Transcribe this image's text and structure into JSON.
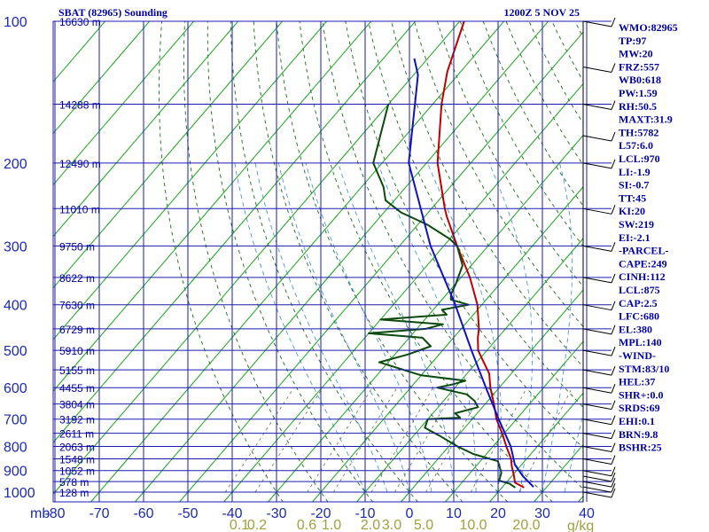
{
  "header": {
    "title": "SBAT (82965) Sounding",
    "time": "1200Z  5 NOV 25"
  },
  "chart_data": {
    "type": "skew-t",
    "title": "SBAT (82965) Sounding",
    "valid_time": "1200Z  5 NOV 25",
    "pressure_levels": [
      {
        "p": 100,
        "label": "100",
        "alt": "16630 m"
      },
      {
        "p": 150,
        "label": "",
        "alt": "14288 m"
      },
      {
        "p": 200,
        "label": "200",
        "alt": "12490 m"
      },
      {
        "p": 250,
        "label": "",
        "alt": "11010 m"
      },
      {
        "p": 300,
        "label": "300",
        "alt": "9750 m"
      },
      {
        "p": 350,
        "label": "",
        "alt": "8622 m"
      },
      {
        "p": 400,
        "label": "400",
        "alt": "7630 m"
      },
      {
        "p": 450,
        "label": "",
        "alt": "6729 m"
      },
      {
        "p": 500,
        "label": "500",
        "alt": "5910 m"
      },
      {
        "p": 550,
        "label": "",
        "alt": "5155 m"
      },
      {
        "p": 600,
        "label": "600",
        "alt": "4455 m"
      },
      {
        "p": 650,
        "label": "",
        "alt": "3804 m"
      },
      {
        "p": 700,
        "label": "700",
        "alt": "3192 m"
      },
      {
        "p": 750,
        "label": "",
        "alt": "2611 m"
      },
      {
        "p": 800,
        "label": "800",
        "alt": "2063 m"
      },
      {
        "p": 850,
        "label": "",
        "alt": "1548 m"
      },
      {
        "p": 900,
        "label": "900",
        "alt": "1052 m"
      },
      {
        "p": 950,
        "label": "",
        "alt": "578 m"
      },
      {
        "p": 1000,
        "label": "1000",
        "alt": "128 m"
      }
    ],
    "pressure_unit_label": "mb",
    "temp_ticks": [
      -80,
      -70,
      -60,
      -50,
      -40,
      -30,
      -20,
      -10,
      0,
      10,
      20,
      30,
      40
    ],
    "temp_tick_labels": [
      "-80",
      "-70",
      "-60",
      "-50",
      "-40",
      "-30",
      "-20",
      "-10",
      "0",
      "10",
      "20",
      "30",
      "40"
    ],
    "mixing_ratio_labels": [
      {
        "w": 0.1,
        "label": "0.1"
      },
      {
        "w": 0.2,
        "label": "0.2"
      },
      {
        "w": 0.6,
        "label": "0.6"
      },
      {
        "w": 1.0,
        "label": "1.0"
      },
      {
        "w": 2.0,
        "label": "2.0"
      },
      {
        "w": 3.0,
        "label": "3.0"
      },
      {
        "w": 5.0,
        "label": "5.0"
      },
      {
        "w": 10.0,
        "label": "10.0"
      },
      {
        "w": 20.0,
        "label": "20.0"
      }
    ],
    "mixing_ratio_unit": "g/kg",
    "series": [
      {
        "name": "temperature",
        "color": "#c00000",
        "points": [
          {
            "p": 978,
            "t": 25.0
          },
          {
            "p": 955,
            "t": 22.0
          },
          {
            "p": 925,
            "t": 20.5
          },
          {
            "p": 880,
            "t": 18.0
          },
          {
            "p": 850,
            "t": 16.5
          },
          {
            "p": 800,
            "t": 13.0
          },
          {
            "p": 750,
            "t": 9.5
          },
          {
            "p": 700,
            "t": 5.5
          },
          {
            "p": 650,
            "t": 2.0
          },
          {
            "p": 600,
            "t": -2.0
          },
          {
            "p": 560,
            "t": -5.0
          },
          {
            "p": 525,
            "t": -9.0
          },
          {
            "p": 500,
            "t": -12.0
          },
          {
            "p": 470,
            "t": -14.5
          },
          {
            "p": 450,
            "t": -16.0
          },
          {
            "p": 400,
            "t": -21.0
          },
          {
            "p": 350,
            "t": -28.0
          },
          {
            "p": 300,
            "t": -37.0
          },
          {
            "p": 260,
            "t": -45.0
          },
          {
            "p": 250,
            "t": -47.0
          },
          {
            "p": 200,
            "t": -57.5
          },
          {
            "p": 150,
            "t": -68.0
          },
          {
            "p": 128,
            "t": -73.0
          },
          {
            "p": 100,
            "t": -79.0
          }
        ]
      },
      {
        "name": "dewpoint",
        "color": "#0a4a0a",
        "points": [
          {
            "p": 978,
            "t": 23.0
          },
          {
            "p": 960,
            "t": 21.0
          },
          {
            "p": 945,
            "t": 18.0
          },
          {
            "p": 910,
            "t": 17.0
          },
          {
            "p": 860,
            "t": 14.0
          },
          {
            "p": 830,
            "t": 7.0
          },
          {
            "p": 800,
            "t": 2.0
          },
          {
            "p": 760,
            "t": -4.0
          },
          {
            "p": 730,
            "t": -9.0
          },
          {
            "p": 700,
            "t": -10.0
          },
          {
            "p": 695,
            "t": -3.0
          },
          {
            "p": 680,
            "t": -5.0
          },
          {
            "p": 660,
            "t": -1.0
          },
          {
            "p": 640,
            "t": -3.0
          },
          {
            "p": 620,
            "t": -6.0
          },
          {
            "p": 600,
            "t": -14.0
          },
          {
            "p": 590,
            "t": -11.0
          },
          {
            "p": 580,
            "t": -9.0
          },
          {
            "p": 565,
            "t": -20.0
          },
          {
            "p": 530,
            "t": -32.0
          },
          {
            "p": 510,
            "t": -27.0
          },
          {
            "p": 490,
            "t": -23.5
          },
          {
            "p": 470,
            "t": -27.0
          },
          {
            "p": 460,
            "t": -40.0
          },
          {
            "p": 450,
            "t": -28.0
          },
          {
            "p": 440,
            "t": -25.0
          },
          {
            "p": 430,
            "t": -40.0
          },
          {
            "p": 420,
            "t": -26.0
          },
          {
            "p": 410,
            "t": -28.0
          },
          {
            "p": 400,
            "t": -23.0
          },
          {
            "p": 390,
            "t": -28.0
          },
          {
            "p": 380,
            "t": -29.0
          },
          {
            "p": 360,
            "t": -30.0
          },
          {
            "p": 330,
            "t": -32.0
          },
          {
            "p": 300,
            "t": -37.0
          },
          {
            "p": 290,
            "t": -40.0
          },
          {
            "p": 270,
            "t": -48.0
          },
          {
            "p": 255,
            "t": -56.0
          },
          {
            "p": 240,
            "t": -62.0
          },
          {
            "p": 225,
            "t": -65.0
          },
          {
            "p": 200,
            "t": -72.0
          },
          {
            "p": 150,
            "t": -80.0
          }
        ]
      },
      {
        "name": "parcel",
        "color": "#1010c0",
        "points": [
          {
            "p": 975,
            "t": 27.0
          },
          {
            "p": 925,
            "t": 22.5
          },
          {
            "p": 875,
            "t": 18.5
          },
          {
            "p": 800,
            "t": 14.0
          },
          {
            "p": 700,
            "t": 6.0
          },
          {
            "p": 600,
            "t": -3.0
          },
          {
            "p": 500,
            "t": -13.5
          },
          {
            "p": 400,
            "t": -26.0
          },
          {
            "p": 300,
            "t": -43.0
          },
          {
            "p": 200,
            "t": -64.0
          },
          {
            "p": 150,
            "t": -74.0
          },
          {
            "p": 130,
            "t": -79.0
          },
          {
            "p": 120,
            "t": -83.0
          }
        ]
      }
    ],
    "wind_barbs_pressures": [
      100,
      125,
      150,
      175,
      200,
      250,
      300,
      350,
      400,
      450,
      500,
      550,
      600,
      650,
      700,
      750,
      800,
      850,
      900,
      925,
      950,
      975,
      1000
    ]
  },
  "indices": [
    "WMO:82965",
    "TP:97",
    "MW:20",
    "FRZ:557",
    "WB0:618",
    "PW:1.59",
    "RH:50.5",
    "MAXT:31.9",
    "TH:5782",
    "L57:6.0",
    "LCL:970",
    "LI:-1.9",
    "SI:-0.7",
    "TT:45",
    "KI:20",
    "SW:219",
    "EI:-2.1",
    "-PARCEL-",
    "CAPE:249",
    "CINH:112",
    "LCL:875",
    "CAP:2.5",
    "LFC:680",
    "EL:380",
    "MPL:140",
    "-WIND-",
    "STM:83/10",
    "HEL:37",
    "SHR+:0.0",
    "SRDS:69",
    "EHI:0.1",
    "BRN:9.8",
    "BSHR:25"
  ]
}
